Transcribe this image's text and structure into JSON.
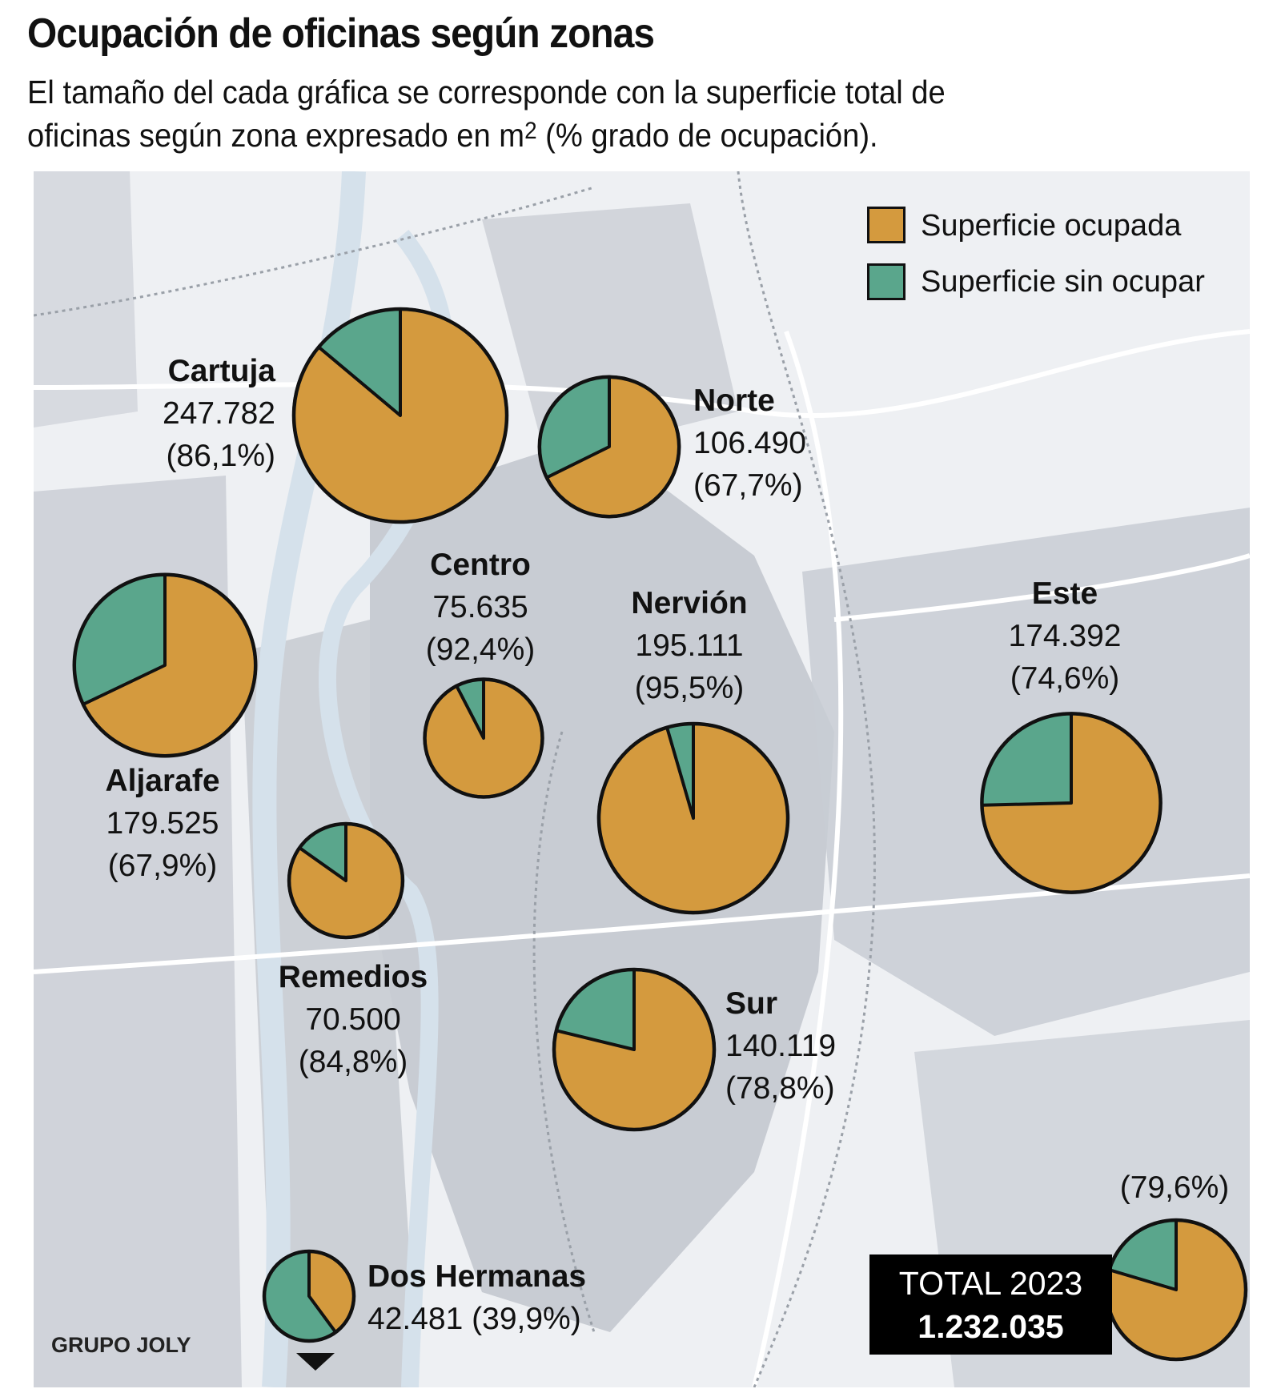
{
  "title": "Ocupación de oficinas según zonas",
  "subtitle": {
    "line1": "El tamaño del cada gráfica se corresponde con la superficie total de",
    "line2_pre": "oficinas según zona expresado en m",
    "line2_sup": "2",
    "line2_post": " (% grado de ocupación)."
  },
  "legend": [
    {
      "label": "Superficie ocupada",
      "color": "#d49a3e"
    },
    {
      "label": "Superficie sin ocupar",
      "color": "#5aa68c"
    }
  ],
  "chart_data": {
    "type": "pie",
    "size_encoding": "total office surface (m2)",
    "series_names": [
      "Superficie ocupada",
      "Superficie sin ocupar"
    ],
    "zones": [
      {
        "name": "Cartuja",
        "surface": "247.782",
        "surface_m2": 247782,
        "occupancy": "(86,1%)",
        "occupied_pct": 86.1
      },
      {
        "name": "Norte",
        "surface": "106.490",
        "surface_m2": 106490,
        "occupancy": "(67,7%)",
        "occupied_pct": 67.7
      },
      {
        "name": "Aljarafe",
        "surface": "179.525",
        "surface_m2": 179525,
        "occupancy": "(67,9%)",
        "occupied_pct": 67.9
      },
      {
        "name": "Centro",
        "surface": "75.635",
        "surface_m2": 75635,
        "occupancy": "(92,4%)",
        "occupied_pct": 92.4
      },
      {
        "name": "Nervión",
        "surface": "195.111",
        "surface_m2": 195111,
        "occupancy": "(95,5%)",
        "occupied_pct": 95.5
      },
      {
        "name": "Este",
        "surface": "174.392",
        "surface_m2": 174392,
        "occupancy": "(74,6%)",
        "occupied_pct": 74.6
      },
      {
        "name": "Remedios",
        "surface": "70.500",
        "surface_m2": 70500,
        "occupancy": "(84,8%)",
        "occupied_pct": 84.8
      },
      {
        "name": "Sur",
        "surface": "140.119",
        "surface_m2": 140119,
        "occupancy": "(78,8%)",
        "occupied_pct": 78.8
      },
      {
        "name": "Dos Hermanas",
        "surface": "42.481",
        "surface_m2": 42481,
        "occupancy": "(39,9%)",
        "occupied_pct": 39.9
      }
    ],
    "total": {
      "label": "TOTAL 2023",
      "surface": "1.232.035",
      "surface_m2": 1232035,
      "occupancy": "(79,6%)",
      "occupied_pct": 79.6
    }
  },
  "colors": {
    "occupied": "#d49a3e",
    "unoccupied": "#5aa68c",
    "map_bg": "#eef0f3",
    "blocks": "#c8ccd3",
    "river": "#d5e1eb"
  },
  "credit": "GRUPO JOLY"
}
